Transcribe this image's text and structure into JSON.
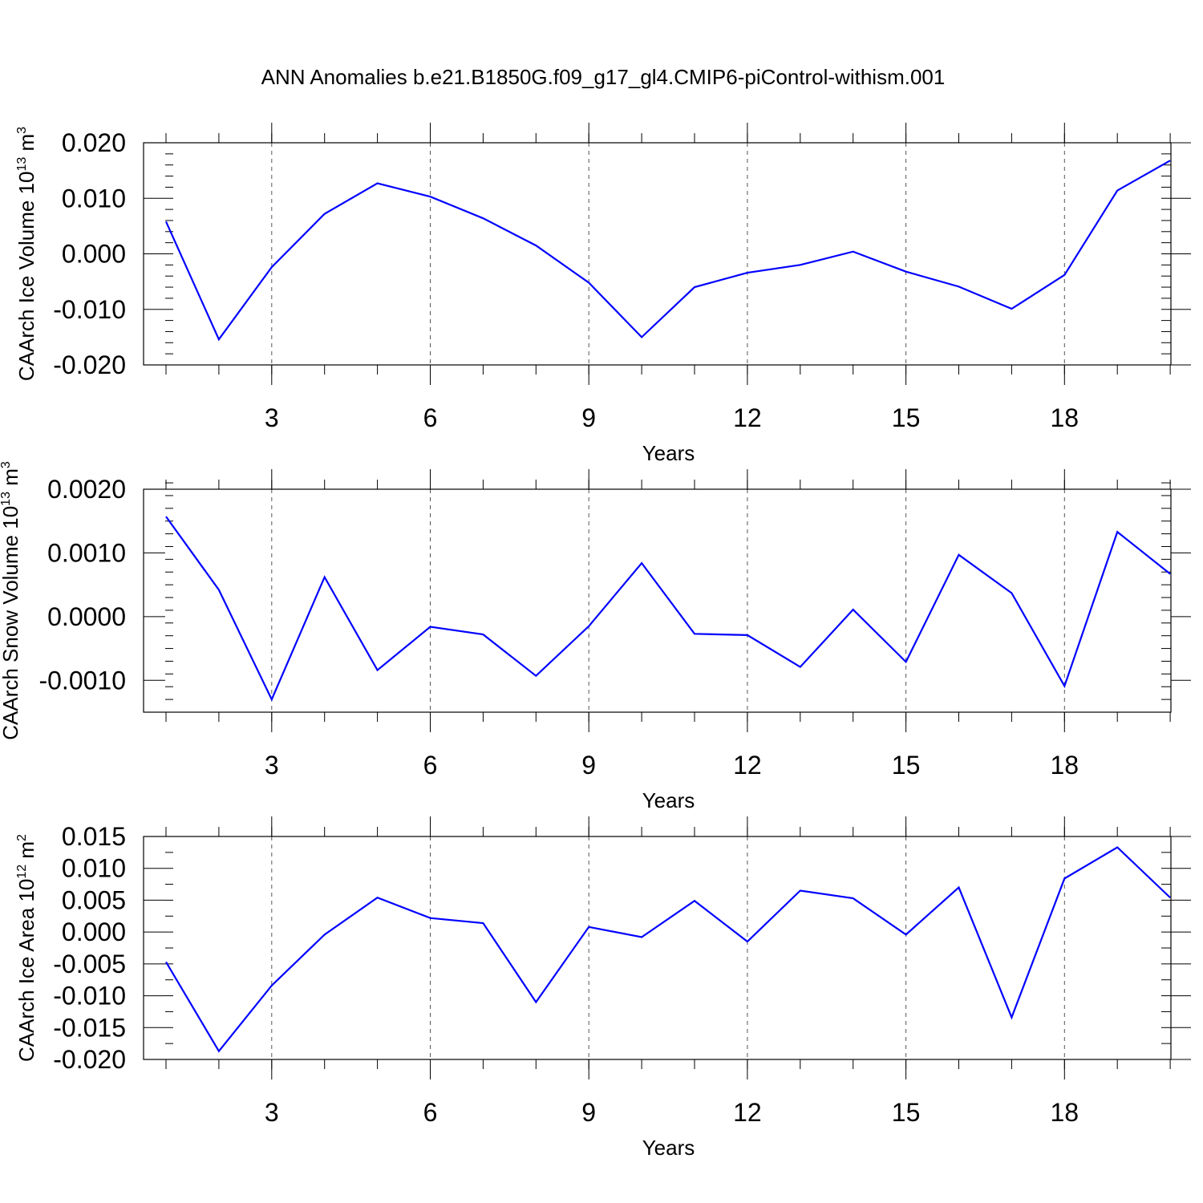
{
  "suptitle": "ANN Anomalies b.e21.B1850G.f09_g17_gl4.CMIP6-piControl-withism.001",
  "colors": {
    "series": "#0000ff",
    "frame": "#000000",
    "grid": "#555555"
  },
  "chart_data": [
    {
      "type": "line",
      "xlabel": "Years",
      "ylabel": "CAArch Ice Volume 10",
      "ylabel_exp": "13",
      "ylabel_unit": " m",
      "ylabel_unit_exp": "3",
      "xlim": [
        1,
        20
      ],
      "ylim": [
        -0.02,
        0.02
      ],
      "xticks": [
        3,
        6,
        9,
        12,
        15,
        18
      ],
      "xtick_labels": [
        "3",
        "6",
        "9",
        "12",
        "15",
        "18"
      ],
      "yticks": [
        -0.02,
        -0.01,
        0.0,
        0.01,
        0.02
      ],
      "ytick_labels": [
        "-0.020",
        "-0.010",
        "0.000",
        "0.010",
        "0.020"
      ],
      "grid": "vertical-dashed-at-major-x",
      "series": [
        {
          "x": [
            1,
            2,
            3,
            4,
            5,
            6,
            7,
            8,
            9,
            10,
            11,
            12,
            13,
            14,
            15,
            16,
            17,
            18,
            19,
            20
          ],
          "values": [
            0.0058,
            -0.0154,
            -0.0024,
            0.0072,
            0.0127,
            0.0103,
            0.0064,
            0.0015,
            -0.0052,
            -0.015,
            -0.006,
            -0.0034,
            -0.002,
            0.0004,
            -0.0032,
            -0.0059,
            -0.0099,
            -0.0038,
            0.0114,
            0.0168
          ]
        }
      ]
    },
    {
      "type": "line",
      "xlabel": "Years",
      "ylabel": "CAArch Snow Volume 10",
      "ylabel_exp": "13",
      "ylabel_unit": " m",
      "ylabel_unit_exp": "3",
      "xlim": [
        1,
        20
      ],
      "ylim": [
        -0.0015,
        0.002
      ],
      "xticks": [
        3,
        6,
        9,
        12,
        15,
        18
      ],
      "xtick_labels": [
        "3",
        "6",
        "9",
        "12",
        "15",
        "18"
      ],
      "yticks": [
        -0.001,
        0.0,
        0.001,
        0.002
      ],
      "ytick_labels": [
        "-0.0010",
        "0.0000",
        "0.0010",
        "0.0020"
      ],
      "grid": "vertical-dashed-at-major-x",
      "series": [
        {
          "x": [
            1,
            2,
            3,
            4,
            5,
            6,
            7,
            8,
            9,
            10,
            11,
            12,
            13,
            14,
            15,
            16,
            17,
            18,
            19,
            20
          ],
          "values": [
            0.00157,
            0.00042,
            -0.0013,
            0.00062,
            -0.00084,
            -0.00016,
            -0.00028,
            -0.00093,
            -0.00015,
            0.00084,
            -0.00027,
            -0.00029,
            -0.00079,
            0.00011,
            -0.00071,
            0.00097,
            0.00037,
            -0.00109,
            0.00133,
            0.00067
          ]
        }
      ]
    },
    {
      "type": "line",
      "xlabel": "Years",
      "ylabel": "CAArch Ice Area 10",
      "ylabel_exp": "12",
      "ylabel_unit": " m",
      "ylabel_unit_exp": "2",
      "xlim": [
        1,
        20
      ],
      "ylim": [
        -0.02,
        0.015
      ],
      "xticks": [
        3,
        6,
        9,
        12,
        15,
        18
      ],
      "xtick_labels": [
        "3",
        "6",
        "9",
        "12",
        "15",
        "18"
      ],
      "yticks": [
        -0.02,
        -0.015,
        -0.01,
        -0.005,
        0.0,
        0.005,
        0.01,
        0.015
      ],
      "ytick_labels": [
        "-0.020",
        "-0.015",
        "-0.010",
        "-0.005",
        "0.000",
        "0.005",
        "0.010",
        "0.015"
      ],
      "grid": "vertical-dashed-at-major-x",
      "series": [
        {
          "x": [
            1,
            2,
            3,
            4,
            5,
            6,
            7,
            8,
            9,
            10,
            11,
            12,
            13,
            14,
            15,
            16,
            17,
            18,
            19,
            20
          ],
          "values": [
            -0.0047,
            -0.0187,
            -0.0084,
            -0.0004,
            0.0054,
            0.0022,
            0.0014,
            -0.011,
            0.0008,
            -0.0008,
            0.0049,
            -0.0015,
            0.0065,
            0.0053,
            -0.0004,
            0.007,
            -0.0134,
            0.0084,
            0.0133,
            0.0054
          ]
        }
      ]
    }
  ]
}
